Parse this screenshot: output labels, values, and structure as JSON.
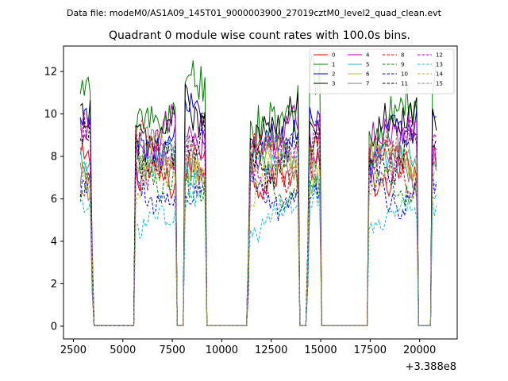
{
  "figure": {
    "suptitle": "Data file: modeM0/AS1A09_145T01_9000003900_27019cztM0_level2_quad_clean.evt",
    "title": "Quadrant 0 module wise count rates with 100.0s bins.",
    "x_offset_label": "+3.388e8"
  },
  "chart_data": {
    "type": "line",
    "title": "Quadrant 0 module wise count rates with 100.0s bins.",
    "xlabel": "",
    "ylabel": "",
    "xlim": [
      2000,
      21900
    ],
    "ylim": [
      -0.6,
      13.2
    ],
    "x_offset": 338800000,
    "xticks": [
      2500,
      5000,
      7500,
      10000,
      12500,
      15000,
      17500,
      20000
    ],
    "xtick_labels": [
      "2500",
      "5000",
      "7500",
      "10000",
      "12500",
      "15000",
      "17500",
      "20000"
    ],
    "yticks": [
      0,
      2,
      4,
      6,
      8,
      10,
      12
    ],
    "ytick_labels": [
      "0",
      "2",
      "4",
      "6",
      "8",
      "10",
      "12"
    ],
    "legend_position": "top-right",
    "legend_columns": 4,
    "active_segments": [
      [
        2850,
        3350
      ],
      [
        5600,
        7700
      ],
      [
        8100,
        9200
      ],
      [
        11450,
        13900
      ],
      [
        14450,
        15000
      ],
      [
        17400,
        19900
      ],
      [
        20600,
        20900
      ]
    ],
    "gap_drop_points": [
      3450,
      5500,
      7800,
      8000,
      9300,
      11350,
      14000,
      14350,
      15100,
      17300,
      20000,
      20500
    ],
    "series": [
      {
        "name": "0",
        "color": "#ff0000",
        "dash": "solid",
        "level": 7.6
      },
      {
        "name": "1",
        "color": "#008000",
        "dash": "solid",
        "level": 9.8
      },
      {
        "name": "2",
        "color": "#0000ff",
        "dash": "solid",
        "level": 9.0
      },
      {
        "name": "3",
        "color": "#000000",
        "dash": "solid",
        "level": 9.3
      },
      {
        "name": "4",
        "color": "#bf00bf",
        "dash": "solid",
        "level": 8.5
      },
      {
        "name": "5",
        "color": "#17becf",
        "dash": "solid",
        "level": 7.3
      },
      {
        "name": "6",
        "color": "#bcbd22",
        "dash": "solid",
        "level": 7.4
      },
      {
        "name": "7",
        "color": "#7f7f7f",
        "dash": "solid",
        "level": 7.8
      },
      {
        "name": "8",
        "color": "#ff0000",
        "dash": "dashed",
        "level": 7.9
      },
      {
        "name": "9",
        "color": "#008000",
        "dash": "dashed",
        "level": 7.2
      },
      {
        "name": "10",
        "color": "#0000ff",
        "dash": "dashed",
        "level": 6.6
      },
      {
        "name": "11",
        "color": "#000000",
        "dash": "dashed",
        "level": 8.4
      },
      {
        "name": "12",
        "color": "#bf00bf",
        "dash": "dashed",
        "level": 8.2
      },
      {
        "name": "13",
        "color": "#17becf",
        "dash": "dashed",
        "level": 5.2
      },
      {
        "name": "14",
        "color": "#bcbd22",
        "dash": "dashed",
        "level": 7.0
      },
      {
        "name": "15",
        "color": "#7f7f7f",
        "dash": "dashed",
        "level": 7.6
      }
    ]
  }
}
